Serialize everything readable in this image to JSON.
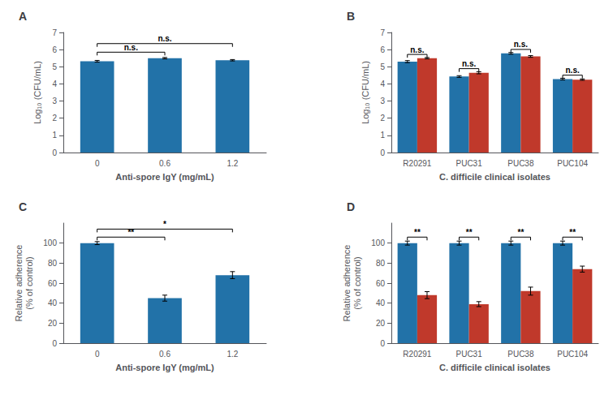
{
  "chart_data": [
    {
      "type": "bar",
      "title": "A",
      "xlabel": "Anti-spore IgY (mg/mL)",
      "ylabel": "Log₁₀ (CFU/mL)",
      "categories": [
        "0",
        "0.6",
        "1.2"
      ],
      "values": [
        5.32,
        5.5,
        5.38
      ],
      "errors": [
        0.05,
        0.04,
        0.04
      ],
      "color": "#2272a8",
      "ylim": [
        0,
        7
      ],
      "yticks": [
        0,
        1,
        2,
        3,
        4,
        5,
        6,
        7
      ],
      "grid": false,
      "annotations": [
        {
          "from": "0",
          "to": "0.6",
          "y": 5.85,
          "label": "n.s."
        },
        {
          "from": "0",
          "to": "1.2",
          "y": 6.35,
          "label": "n.s."
        }
      ]
    },
    {
      "type": "bar",
      "title": "B",
      "xlabel": "C. difficile clinical isolates",
      "ylabel": "Log₁₀ (CFU/mL)",
      "categories": [
        "R20291",
        "PUC31",
        "PUC38",
        "PUC104"
      ],
      "series": [
        {
          "color": "#2272a8",
          "values": [
            5.3,
            4.43,
            5.78,
            4.28
          ],
          "errors": [
            0.06,
            0.05,
            0.05,
            0.05
          ]
        },
        {
          "color": "#c0392b",
          "values": [
            5.5,
            4.65,
            5.6,
            4.25
          ],
          "errors": [
            0.04,
            0.06,
            0.05,
            0.04
          ]
        }
      ],
      "ylim": [
        0,
        7
      ],
      "yticks": [
        0,
        1,
        2,
        3,
        4,
        5,
        6,
        7
      ],
      "grid": false,
      "annotations": [
        {
          "category": "R20291",
          "y": 5.72,
          "label": "n.s."
        },
        {
          "category": "PUC31",
          "y": 4.89,
          "label": "n.s."
        },
        {
          "category": "PUC38",
          "y": 6.01,
          "label": "n.s."
        },
        {
          "category": "PUC104",
          "y": 4.51,
          "label": "n.s."
        }
      ]
    },
    {
      "type": "bar",
      "title": "C",
      "xlabel": "Anti-spore IgY (mg/mL)",
      "ylabel": "Relative adherence\n(% of control)",
      "categories": [
        "0",
        "0.6",
        "1.2"
      ],
      "values": [
        100,
        45,
        68
      ],
      "errors": [
        1.5,
        3.0,
        3.5
      ],
      "color": "#2272a8",
      "ylim": [
        0,
        120
      ],
      "yticks": [
        0,
        20,
        40,
        60,
        80,
        100
      ],
      "grid": false,
      "annotations": [
        {
          "from": "0",
          "to": "0.6",
          "y": 106,
          "label": "**"
        },
        {
          "from": "0",
          "to": "1.2",
          "y": 114,
          "label": "*"
        }
      ]
    },
    {
      "type": "bar",
      "title": "D",
      "xlabel": "C. difficile clinical isolates",
      "ylabel": "Relative adherence\n(% of control)",
      "categories": [
        "R20291",
        "PUC31",
        "PUC38",
        "PUC104"
      ],
      "series": [
        {
          "color": "#2272a8",
          "values": [
            100,
            100,
            100,
            100
          ],
          "errors": [
            2.0,
            2.0,
            2.0,
            2.0
          ]
        },
        {
          "color": "#c0392b",
          "values": [
            48,
            39,
            52,
            74
          ],
          "errors": [
            3.5,
            2.5,
            4.0,
            3.0
          ]
        }
      ],
      "ylim": [
        0,
        120
      ],
      "yticks": [
        0,
        20,
        40,
        60,
        80,
        100
      ],
      "grid": false,
      "annotations": [
        {
          "category": "R20291",
          "y": 106,
          "label": "**"
        },
        {
          "category": "PUC31",
          "y": 106,
          "label": "**"
        },
        {
          "category": "PUC38",
          "y": 106,
          "label": "**"
        },
        {
          "category": "PUC104",
          "y": 106,
          "label": "**"
        }
      ]
    }
  ]
}
